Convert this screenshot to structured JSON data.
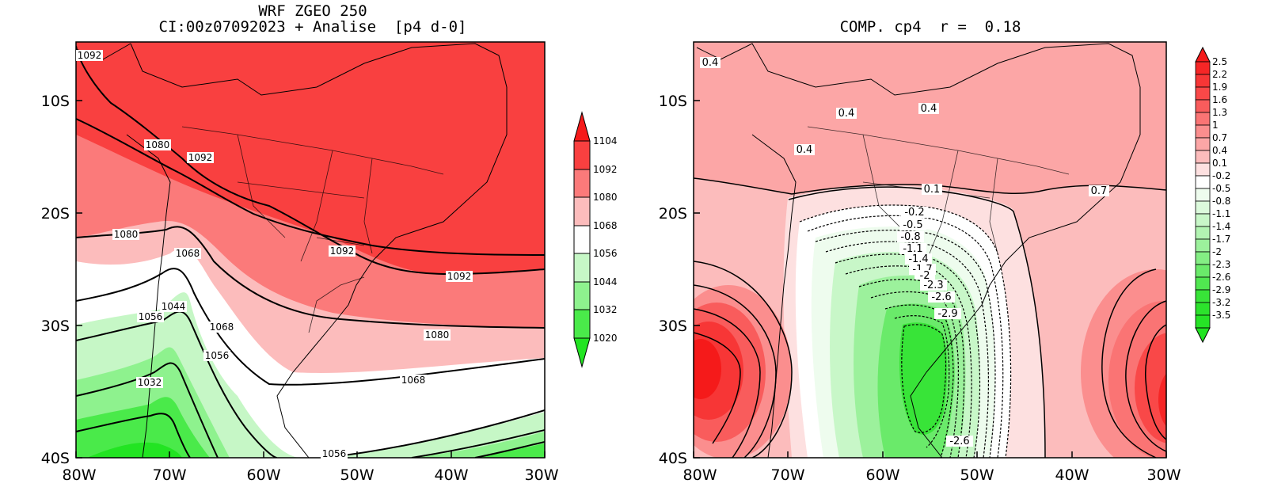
{
  "left_panel": {
    "title_line1": "WRF ZGEO 250",
    "title_line2": "CI:00z07092023 + Analise  [p4 d-0]",
    "y_ticks": [
      "10S",
      "20S",
      "30S",
      "40S"
    ],
    "x_ticks": [
      "80W",
      "70W",
      "60W",
      "50W",
      "40W",
      "30W"
    ],
    "colorbar_labels": [
      "1104",
      "1092",
      "1080",
      "1068",
      "1056",
      "1044",
      "1032",
      "1020"
    ],
    "colorbar_colors": [
      "#f51a1a",
      "#f94040",
      "#fb7a7a",
      "#fcbcbc",
      "#ffffff",
      "#c6f7c6",
      "#8ef28e",
      "#4aea4a",
      "#22e422"
    ],
    "contour_labels": [
      {
        "text": "1092",
        "name": "contour-label-1092-nw"
      },
      {
        "text": "1080",
        "name": "contour-label-1080-andes"
      },
      {
        "text": "1092",
        "name": "contour-label-1092-andes"
      },
      {
        "text": "1080",
        "name": "contour-label-1080-pacific"
      },
      {
        "text": "1068",
        "name": "contour-label-1068-chile"
      },
      {
        "text": "1092",
        "name": "contour-label-1092-southeast"
      },
      {
        "text": "1092",
        "name": "contour-label-1092-atlantic"
      },
      {
        "text": "1044",
        "name": "contour-label-1044"
      },
      {
        "text": "1056",
        "name": "contour-label-1056-west"
      },
      {
        "text": "1068",
        "name": "contour-label-1068-argentina"
      },
      {
        "text": "1056",
        "name": "contour-label-1056-argentina"
      },
      {
        "text": "1080",
        "name": "contour-label-1080-atlantic"
      },
      {
        "text": "1032",
        "name": "contour-label-1032"
      },
      {
        "text": "1068",
        "name": "contour-label-1068-atlantic"
      },
      {
        "text": "1056",
        "name": "contour-label-1056-south"
      }
    ]
  },
  "right_panel": {
    "title": "COMP. cp4  r =  0.18",
    "y_ticks": [
      "10S",
      "20S",
      "30S",
      "40S"
    ],
    "x_ticks": [
      "80W",
      "70W",
      "60W",
      "50W",
      "40W",
      "30W"
    ],
    "colorbar_labels": [
      "2.5",
      "2.2",
      "1.9",
      "1.6",
      "1.3",
      "1",
      "0.7",
      "0.4",
      "0.1",
      "-0.2",
      "-0.5",
      "-0.8",
      "-1.1",
      "-1.4",
      "-1.7",
      "-2",
      "-2.3",
      "-2.6",
      "-2.9",
      "-3.2",
      "-3.5"
    ],
    "colorbar_colors": [
      "#f51a1a",
      "#f62626",
      "#f73636",
      "#f94848",
      "#f95c5c",
      "#fa7474",
      "#fb8e8e",
      "#fca6a6",
      "#fcbcbc",
      "#fde0e0",
      "#ffffff",
      "#eefcee",
      "#dcfadc",
      "#c8f7c8",
      "#b2f4b2",
      "#9cf19c",
      "#84ee84",
      "#6aea6a",
      "#50e750",
      "#38e438",
      "#22e422"
    ],
    "contour_labels": [
      {
        "text": "0.4",
        "name": "contour-label-0.4-nw"
      },
      {
        "text": "0.4",
        "name": "contour-label-0.4-amazon"
      },
      {
        "text": "0.4",
        "name": "contour-label-0.4-north"
      },
      {
        "text": "0.4",
        "name": "contour-label-0.4-west"
      },
      {
        "text": "0.1",
        "name": "contour-label-0.1"
      },
      {
        "text": "0.7",
        "name": "contour-label-0.7"
      },
      {
        "text": "-0.2",
        "name": "contour-label-minus-0.2"
      },
      {
        "text": "-0.5",
        "name": "contour-label-minus-0.5"
      },
      {
        "text": "-0.8",
        "name": "contour-label-minus-0.8"
      },
      {
        "text": "-1.1",
        "name": "contour-label-minus-1.1"
      },
      {
        "text": "-1.4",
        "name": "contour-label-minus-1.4"
      },
      {
        "text": "-1.7",
        "name": "contour-label-minus-1.7"
      },
      {
        "text": "-2",
        "name": "contour-label-minus-2"
      },
      {
        "text": "-2.3",
        "name": "contour-label-minus-2.3"
      },
      {
        "text": "-2.6",
        "name": "contour-label-minus-2.6-north"
      },
      {
        "text": "-2.9",
        "name": "contour-label-minus-2.9"
      },
      {
        "text": "-2.6",
        "name": "contour-label-minus-2.6-south"
      }
    ]
  }
}
